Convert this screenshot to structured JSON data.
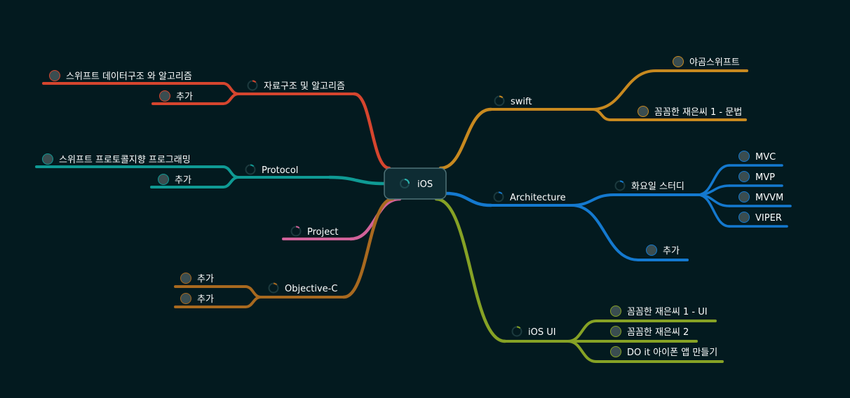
{
  "root": {
    "label": "iOS"
  },
  "branches": [
    {
      "label": "자료구조 및 알고리즘",
      "color": "#d6452e",
      "children": [
        {
          "label": "스위프트 데이터구조 와 알고리즘",
          "children": []
        },
        {
          "label": "추가",
          "children": []
        }
      ]
    },
    {
      "label": "Protocol",
      "color": "#0f9a94",
      "children": [
        {
          "label": "스위프트 프로토콜지향 프로그래밍",
          "children": []
        },
        {
          "label": "추가",
          "children": []
        }
      ]
    },
    {
      "label": "Project",
      "color": "#d1629a",
      "children": []
    },
    {
      "label": "Objective-C",
      "color": "#a8691f",
      "children": [
        {
          "label": "추가",
          "children": []
        },
        {
          "label": "추가",
          "children": []
        }
      ]
    },
    {
      "label": "swift",
      "color": "#c8891f",
      "children": [
        {
          "label": "야곰스위프트",
          "children": []
        },
        {
          "label": "꼼꼼한 재은씨 1 - 문법",
          "children": []
        }
      ]
    },
    {
      "label": "Architecture",
      "color": "#1479cf",
      "children": [
        {
          "label": "화요일 스터디",
          "children": [
            {
              "label": "MVC"
            },
            {
              "label": "MVP"
            },
            {
              "label": "MVVM"
            },
            {
              "label": "VIPER"
            }
          ]
        },
        {
          "label": "추가",
          "children": []
        }
      ]
    },
    {
      "label": "iOS UI",
      "color": "#86a225",
      "children": [
        {
          "label": "꼼꼼한 재은씨 1 - UI",
          "children": []
        },
        {
          "label": "꼼꼼한 재은씨 2",
          "children": []
        },
        {
          "label": "DO it 아이폰 앱 만들기",
          "children": []
        }
      ]
    }
  ]
}
